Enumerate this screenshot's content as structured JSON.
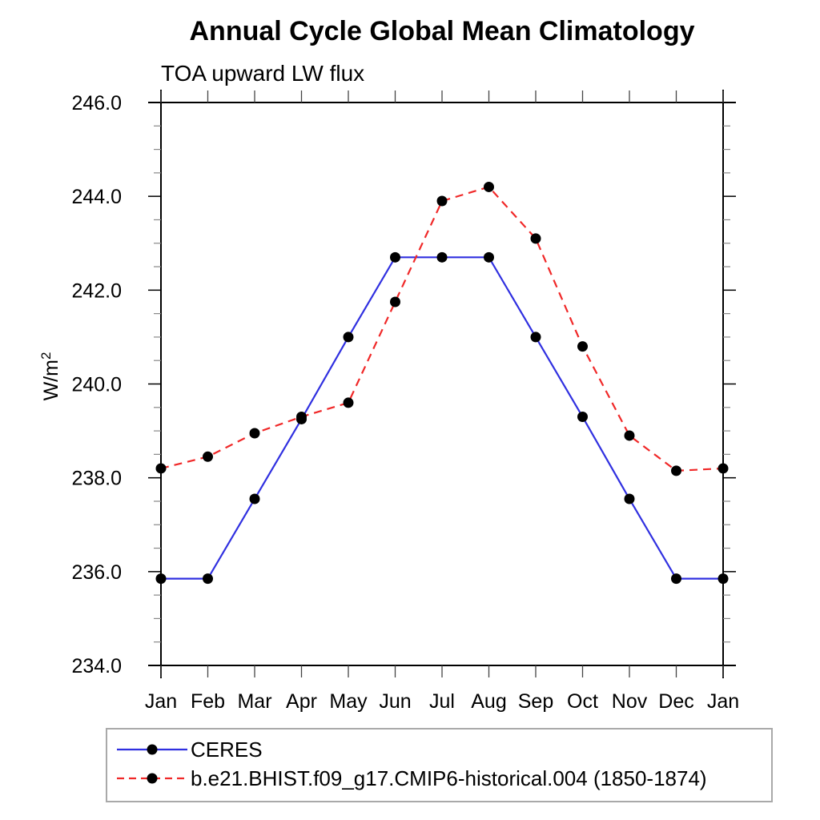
{
  "chart_data": {
    "type": "line",
    "title": "Annual Cycle Global Mean Climatology",
    "subtitle": "TOA upward LW flux",
    "ylabel": "W/m²",
    "xlabel": "",
    "x_categories": [
      "Jan",
      "Feb",
      "Mar",
      "Apr",
      "May",
      "Jun",
      "Jul",
      "Aug",
      "Sep",
      "Oct",
      "Nov",
      "Dec",
      "Jan"
    ],
    "ylim": [
      234.0,
      246.0
    ],
    "y_major_tick_step": 2.0,
    "y_minor_tick_step": 0.5,
    "y_tick_labels": [
      "234.0",
      "236.0",
      "238.0",
      "240.0",
      "242.0",
      "244.0",
      "246.0"
    ],
    "grid": false,
    "legend_position": "bottom-left",
    "series": [
      {
        "name": "CERES",
        "color": "#3030e0",
        "line_style": "solid",
        "marker": "circle",
        "marker_color": "#000000",
        "values": [
          235.85,
          235.85,
          237.55,
          239.25,
          241.0,
          242.7,
          242.7,
          242.7,
          241.0,
          239.3,
          237.55,
          235.85,
          235.85
        ]
      },
      {
        "name": "b.e21.BHIST.f09_g17.CMIP6-historical.004 (1850-1874)",
        "color": "#f02828",
        "line_style": "dashed",
        "marker": "circle",
        "marker_color": "#000000",
        "values": [
          238.2,
          238.45,
          238.95,
          239.3,
          239.6,
          241.75,
          243.9,
          244.2,
          243.1,
          240.8,
          238.9,
          238.15,
          238.2
        ]
      }
    ]
  }
}
